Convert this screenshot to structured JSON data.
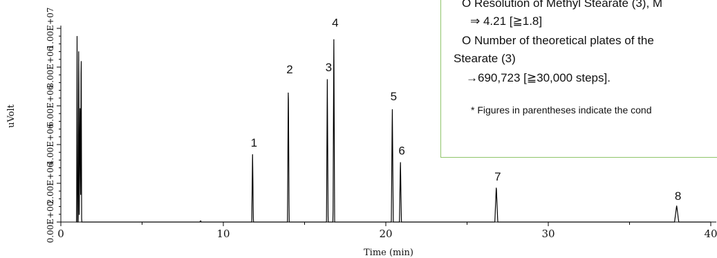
{
  "chart_data": {
    "type": "line",
    "xlabel": "Time (min)",
    "ylabel": "uVolt",
    "xlim": [
      0,
      40
    ],
    "ylim": [
      0,
      10000000
    ],
    "x_ticks": [
      0,
      10,
      20,
      30,
      40
    ],
    "x_tick_labels": [
      "0",
      "10",
      "20",
      "30",
      "40"
    ],
    "y_ticks": [
      0,
      2000000,
      4000000,
      6000000,
      8000000,
      10000000
    ],
    "y_tick_labels": [
      "0.00E+00",
      "2.00E+06",
      "4.00E+06",
      "6.00E+06",
      "8.00E+06",
      "1.00E+07"
    ],
    "grid": false,
    "solvent_peaks": [
      {
        "x": 1.0,
        "y": 10000000,
        "w": 0.03
      },
      {
        "x": 1.1,
        "y": 10000000,
        "w": 0.03
      },
      {
        "x": 1.25,
        "y": 10000000,
        "w": 0.03
      },
      {
        "x": 1.18,
        "y": 6100000,
        "w": 0.05
      },
      {
        "x": 8.6,
        "y": 60000,
        "w": 0.05
      }
    ],
    "peaks": [
      {
        "label": "1",
        "x": 11.8,
        "y": 3600000,
        "w": 0.05
      },
      {
        "label": "2",
        "x": 14.0,
        "y": 7400000,
        "w": 0.05
      },
      {
        "label": "3",
        "x": 16.4,
        "y": 7500000,
        "w": 0.05
      },
      {
        "label": "4",
        "x": 16.8,
        "y": 9800000,
        "w": 0.05
      },
      {
        "label": "5",
        "x": 20.4,
        "y": 6000000,
        "w": 0.06
      },
      {
        "label": "6",
        "x": 20.9,
        "y": 3200000,
        "w": 0.06
      },
      {
        "label": "7",
        "x": 26.8,
        "y": 1850000,
        "w": 0.09
      },
      {
        "label": "8",
        "x": 37.9,
        "y": 850000,
        "w": 0.13
      }
    ]
  },
  "note": {
    "line1": "O Resolution of Methyl Stearate (3), M",
    "line2": "⇒ 4.21 [≧1.8]",
    "line3": "O Number of theoretical plates of the",
    "line4": "Stearate (3)",
    "line5": "→690,723 [≧30,000 steps].",
    "footnote": "* Figures in parentheses indicate the cond"
  },
  "colors": {
    "trace": "#000000",
    "axis": "#000000",
    "note_border": "#8fc46a"
  }
}
